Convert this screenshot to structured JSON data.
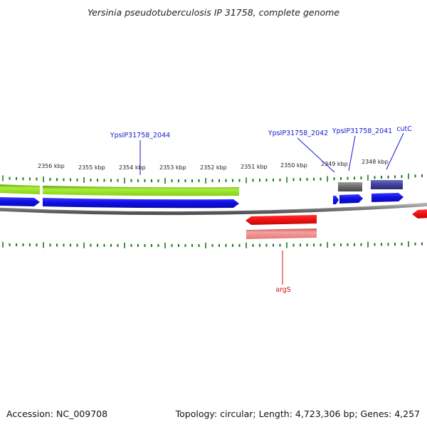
{
  "title": "Yersinia pseudotuberculosis IP 31758, complete genome",
  "footer": {
    "accession": "Accession: NC_009708",
    "summary": "Topology: circular; Length: 4,723,306 bp; Genes: 4,257"
  },
  "colors": {
    "backbone": "#8a8a8a",
    "tick": "#1a7a1a",
    "cds_blue": "#1212e6",
    "gene_green": "#8ed81c",
    "gene_red": "#ee1010",
    "gene_pink": "#ee7a7a",
    "gene_gray": "#6e6e6e",
    "gene_navy": "#40409a",
    "label_blue": "#1a1ad0",
    "label_red": "#d01010"
  },
  "scale": {
    "unit": "kbp",
    "labels": [
      {
        "kbp": 2356,
        "text": "2356 kbp"
      },
      {
        "kbp": 2355,
        "text": "2355 kbp"
      },
      {
        "kbp": 2354,
        "text": "2354 kbp"
      },
      {
        "kbp": 2353,
        "text": "2353 kbp"
      },
      {
        "kbp": 2352,
        "text": "2352 kbp"
      },
      {
        "kbp": 2351,
        "text": "2351 kbp"
      },
      {
        "kbp": 2350,
        "text": "2350 kbp"
      },
      {
        "kbp": 2349,
        "text": "2349 kbp"
      },
      {
        "kbp": 2348,
        "text": "2348 kbp"
      }
    ]
  },
  "gene_labels": [
    {
      "text": "YpsIP31758_2044",
      "color": "label_blue"
    },
    {
      "text": "YpsIP31758_2042",
      "color": "label_blue"
    },
    {
      "text": "YpsIP31758_2041",
      "color": "label_blue"
    },
    {
      "text": "cutC",
      "color": "label_blue"
    },
    {
      "text": "argS",
      "color": "label_red"
    }
  ]
}
